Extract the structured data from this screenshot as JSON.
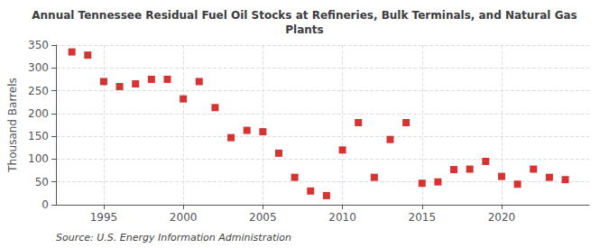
{
  "chart_data": {
    "type": "scatter",
    "title": "Annual Tennessee Residual Fuel Oil Stocks at Refineries, Bulk Terminals, and Natural Gas\nPlants",
    "ylabel": "Thousand Barrels",
    "annotation": "Source: U.S. Energy Information Administration",
    "x": [
      1993,
      1994,
      1995,
      1996,
      1997,
      1998,
      1999,
      2000,
      2001,
      2002,
      2003,
      2004,
      2005,
      2006,
      2007,
      2008,
      2009,
      2010,
      2011,
      2012,
      2013,
      2014,
      2015,
      2016,
      2017,
      2018,
      2019,
      2020,
      2021,
      2022,
      2023,
      2024
    ],
    "values": [
      335,
      328,
      270,
      259,
      265,
      275,
      275,
      232,
      270,
      213,
      147,
      163,
      160,
      113,
      60,
      30,
      20,
      120,
      180,
      60,
      143,
      180,
      47,
      50,
      77,
      78,
      95,
      62,
      45,
      78,
      60,
      55
    ],
    "color": "#cc0000",
    "marker": "square",
    "xlim": [
      1992.0,
      2025.5
    ],
    "xticks": [
      1995,
      2000,
      2005,
      2010,
      2015,
      2020
    ],
    "ylim": [
      0,
      350
    ],
    "yticks": [
      0,
      50,
      100,
      150,
      200,
      250,
      300,
      350
    ],
    "grid": true
  }
}
